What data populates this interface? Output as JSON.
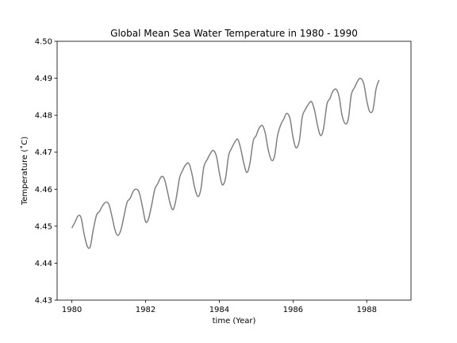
{
  "chart_data": {
    "type": "line",
    "title": "Global Mean Sea Water Temperature in 1980 - 1990",
    "xlabel": "time (Year)",
    "ylabel": "Temperature (˚C)",
    "xlim": [
      1979.6,
      1989.2
    ],
    "ylim": [
      4.43,
      4.5
    ],
    "xticks": [
      1980,
      1982,
      1984,
      1986,
      1988
    ],
    "xtick_labels": [
      "1980",
      "1982",
      "1984",
      "1986",
      "1988"
    ],
    "yticks": [
      4.43,
      4.44,
      4.45,
      4.46,
      4.47,
      4.48,
      4.49,
      4.5
    ],
    "ytick_labels": [
      "4.43",
      "4.44",
      "4.45",
      "4.46",
      "4.47",
      "4.48",
      "4.49",
      "4.50"
    ],
    "grid": false,
    "line_color": "#808080",
    "series": [
      {
        "name": "",
        "points": [
          [
            1980.0,
            4.4495
          ],
          [
            1980.08,
            4.451
          ],
          [
            1980.17,
            4.4528
          ],
          [
            1980.25,
            4.4523
          ],
          [
            1980.33,
            4.448
          ],
          [
            1980.42,
            4.4445
          ],
          [
            1980.5,
            4.4445
          ],
          [
            1980.58,
            4.449
          ],
          [
            1980.67,
            4.453
          ],
          [
            1980.75,
            4.454
          ],
          [
            1980.83,
            4.4555
          ],
          [
            1980.92,
            4.4565
          ],
          [
            1981.0,
            4.456
          ],
          [
            1981.08,
            4.453
          ],
          [
            1981.17,
            4.449
          ],
          [
            1981.25,
            4.4475
          ],
          [
            1981.33,
            4.449
          ],
          [
            1981.42,
            4.453
          ],
          [
            1981.5,
            4.4565
          ],
          [
            1981.58,
            4.4575
          ],
          [
            1981.67,
            4.4595
          ],
          [
            1981.75,
            4.46
          ],
          [
            1981.83,
            4.459
          ],
          [
            1981.92,
            4.455
          ],
          [
            1982.0,
            4.4512
          ],
          [
            1982.08,
            4.452
          ],
          [
            1982.17,
            4.456
          ],
          [
            1982.25,
            4.46
          ],
          [
            1982.33,
            4.4615
          ],
          [
            1982.42,
            4.4633
          ],
          [
            1982.5,
            4.463
          ],
          [
            1982.58,
            4.46
          ],
          [
            1982.67,
            4.456
          ],
          [
            1982.75,
            4.4545
          ],
          [
            1982.83,
            4.4575
          ],
          [
            1982.92,
            4.463
          ],
          [
            1983.0,
            4.465
          ],
          [
            1983.08,
            4.4665
          ],
          [
            1983.17,
            4.467
          ],
          [
            1983.25,
            4.4645
          ],
          [
            1983.33,
            4.4605
          ],
          [
            1983.42,
            4.458
          ],
          [
            1983.5,
            4.46
          ],
          [
            1983.58,
            4.466
          ],
          [
            1983.67,
            4.468
          ],
          [
            1983.75,
            4.4695
          ],
          [
            1983.83,
            4.4705
          ],
          [
            1983.92,
            4.469
          ],
          [
            1984.0,
            4.4645
          ],
          [
            1984.08,
            4.4612
          ],
          [
            1984.17,
            4.463
          ],
          [
            1984.25,
            4.469
          ],
          [
            1984.33,
            4.471
          ],
          [
            1984.42,
            4.4727
          ],
          [
            1984.5,
            4.4735
          ],
          [
            1984.58,
            4.471
          ],
          [
            1984.67,
            4.4668
          ],
          [
            1984.75,
            4.4645
          ],
          [
            1984.83,
            4.467
          ],
          [
            1984.92,
            4.473
          ],
          [
            1985.0,
            4.4745
          ],
          [
            1985.08,
            4.4765
          ],
          [
            1985.17,
            4.4772
          ],
          [
            1985.25,
            4.475
          ],
          [
            1985.33,
            4.4705
          ],
          [
            1985.42,
            4.4678
          ],
          [
            1985.5,
            4.469
          ],
          [
            1985.58,
            4.4745
          ],
          [
            1985.67,
            4.4775
          ],
          [
            1985.75,
            4.479
          ],
          [
            1985.83,
            4.4805
          ],
          [
            1985.92,
            4.479
          ],
          [
            1986.0,
            4.474
          ],
          [
            1986.08,
            4.4712
          ],
          [
            1986.17,
            4.473
          ],
          [
            1986.25,
            4.4795
          ],
          [
            1986.33,
            4.4815
          ],
          [
            1986.42,
            4.483
          ],
          [
            1986.5,
            4.4837
          ],
          [
            1986.58,
            4.4815
          ],
          [
            1986.67,
            4.477
          ],
          [
            1986.75,
            4.4745
          ],
          [
            1986.83,
            4.4765
          ],
          [
            1986.92,
            4.483
          ],
          [
            1987.0,
            4.4845
          ],
          [
            1987.08,
            4.4865
          ],
          [
            1987.17,
            4.487
          ],
          [
            1987.25,
            4.485
          ],
          [
            1987.33,
            4.48
          ],
          [
            1987.42,
            4.4777
          ],
          [
            1987.5,
            4.479
          ],
          [
            1987.58,
            4.4855
          ],
          [
            1987.67,
            4.4875
          ],
          [
            1987.75,
            4.4892
          ],
          [
            1987.83,
            4.49
          ],
          [
            1987.92,
            4.4885
          ],
          [
            1988.0,
            4.484
          ],
          [
            1988.08,
            4.481
          ],
          [
            1988.17,
            4.4815
          ],
          [
            1988.25,
            4.487
          ],
          [
            1988.33,
            4.4895
          ]
        ]
      }
    ]
  }
}
